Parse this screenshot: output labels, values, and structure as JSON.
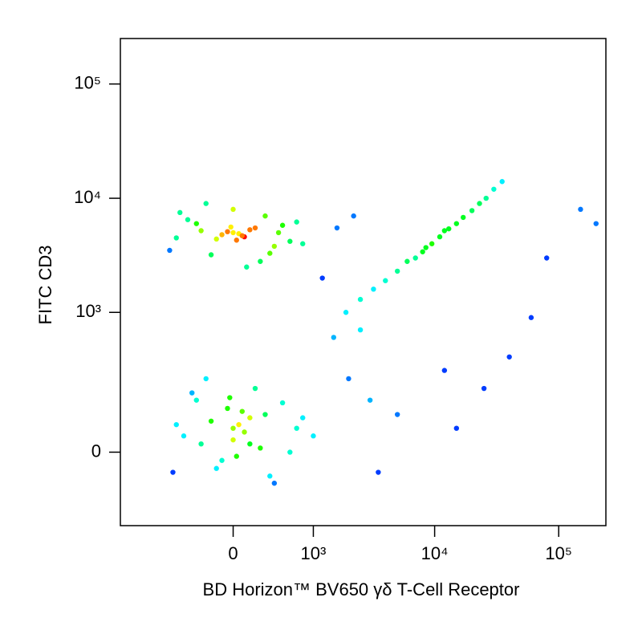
{
  "chart_data": {
    "type": "scatter",
    "xlabel": "BD Horizon™ BV650 γδ T-Cell Receptor",
    "ylabel": "FITC CD3",
    "xscale": "biexponential",
    "yscale": "biexponential",
    "xlim": [
      -1900,
      240000
    ],
    "ylim": [
      -250,
      250000
    ],
    "xticks": [
      0,
      {
        "value": 1000,
        "label": "10³"
      },
      {
        "value": 10000,
        "label": "10⁴"
      },
      {
        "value": 100000,
        "label": "10⁵"
      }
    ],
    "yticks": [
      0,
      {
        "value": 1000,
        "label": "10³"
      },
      {
        "value": 10000,
        "label": "10⁴"
      },
      {
        "value": 100000,
        "label": "10⁵"
      }
    ],
    "color": "density",
    "x": [
      -600,
      -300,
      -100,
      0,
      100,
      200,
      400,
      -450,
      50,
      -200,
      300,
      600,
      -50,
      150,
      -700,
      800,
      0,
      250,
      -350,
      500,
      -150,
      80,
      -20,
      350,
      -550,
      700,
      120,
      -250,
      30,
      450,
      -500,
      -200,
      0,
      150,
      300,
      -100,
      50,
      -350,
      600,
      200,
      -650,
      800,
      -50,
      100,
      400,
      -250,
      0,
      250,
      -400,
      700,
      -150,
      80,
      500,
      -600,
      30,
      350,
      -300,
      150,
      -30,
      1000,
      1900,
      2500,
      3200,
      4000,
      5000,
      6000,
      7000,
      8000,
      9500,
      11000,
      13000,
      15000,
      17000,
      20000,
      23000,
      26000,
      30000,
      35000,
      8500,
      12000,
      1500,
      2000,
      3000,
      5000,
      12000,
      15000,
      25000,
      60000,
      80000,
      150000,
      200000,
      1200,
      2500,
      40000,
      3500,
      1600,
      2200
    ],
    "y": [
      4500,
      5200,
      4800,
      5000,
      4600,
      5500,
      3800,
      6500,
      4900,
      3200,
      7000,
      4200,
      5100,
      5300,
      3500,
      4000,
      8000,
      2800,
      6000,
      5800,
      4400,
      4700,
      5600,
      3300,
      7500,
      6200,
      2500,
      9000,
      4300,
      5000,
      40,
      80,
      60,
      20,
      100,
      -20,
      70,
      150,
      0,
      200,
      -50,
      90,
      120,
      50,
      -80,
      250,
      30,
      10,
      180,
      60,
      -40,
      110,
      140,
      70,
      -10,
      -60,
      20,
      90,
      160,
      40,
      1000,
      1300,
      1600,
      1900,
      2300,
      2800,
      3000,
      3400,
      4000,
      4600,
      5400,
      6000,
      6800,
      7800,
      9000,
      10000,
      12000,
      14000,
      3700,
      5200,
      600,
      250,
      150,
      100,
      300,
      60,
      200,
      900,
      3000,
      8000,
      6000,
      2000,
      700,
      400,
      -50,
      5500,
      7000
    ]
  }
}
